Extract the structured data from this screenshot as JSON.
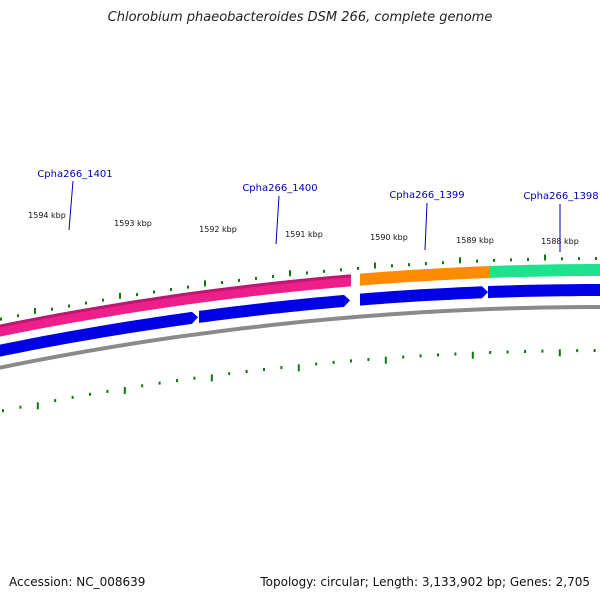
{
  "header": {
    "title": "Chlorobium phaeobacteroides DSM 266, complete genome"
  },
  "footer": {
    "accession": "Accession: NC_008639",
    "summary": "Topology: circular; Length: 3,133,902 bp; Genes: 2,705"
  },
  "colors": {
    "background": "#ffffff",
    "forward_pink": "#ee1f8a",
    "forward_orange": "#ff8c00",
    "forward_green": "#1fe28e",
    "reverse_blue": "#0000e6",
    "backbone_gray": "#8a8a8a",
    "tick_green": "#0a7a0a",
    "label_blue": "#0000b4"
  },
  "ruler": {
    "labels": [
      "1594 kbp",
      "1593 kbp",
      "1592 kbp",
      "1591 kbp",
      "1590 kbp",
      "1589 kbp",
      "1588 kbp"
    ]
  },
  "genes": [
    {
      "name": "Cpha266_1401"
    },
    {
      "name": "Cpha266_1400"
    },
    {
      "name": "Cpha266_1399"
    },
    {
      "name": "Cpha266_1398"
    }
  ]
}
